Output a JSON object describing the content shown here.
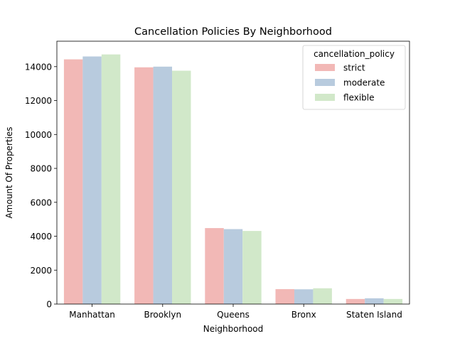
{
  "chart_data": {
    "type": "bar",
    "title": "Cancellation Policies By Neighborhood",
    "xlabel": "Neighborhood",
    "ylabel": "Amount Of Properties",
    "categories": [
      "Manhattan",
      "Brooklyn",
      "Queens",
      "Bronx",
      "Staten Island"
    ],
    "series": [
      {
        "name": "strict",
        "color": "#f2b8b6",
        "values": [
          14430,
          13960,
          4480,
          880,
          300
        ]
      },
      {
        "name": "moderate",
        "color": "#b8cbde",
        "values": [
          14600,
          14000,
          4420,
          870,
          340
        ]
      },
      {
        "name": "flexible",
        "color": "#d1e8c9",
        "values": [
          14720,
          13760,
          4310,
          930,
          300
        ]
      }
    ],
    "ylim": [
      0,
      15500
    ],
    "yticks": [
      0,
      2000,
      4000,
      6000,
      8000,
      10000,
      12000,
      14000
    ],
    "grid": false,
    "legend": {
      "title": "cancellation_policy",
      "placement": "top-right"
    }
  }
}
